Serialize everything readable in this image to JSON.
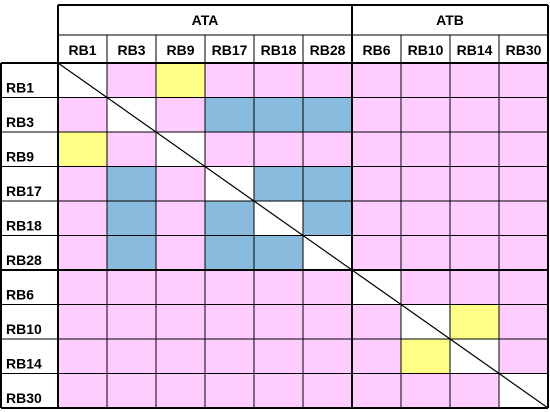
{
  "groups": [
    {
      "label": "ATA",
      "members": [
        "RB1",
        "RB3",
        "RB9",
        "RB17",
        "RB18",
        "RB28"
      ]
    },
    {
      "label": "ATB",
      "members": [
        "RB6",
        "RB10",
        "RB14",
        "RB30"
      ]
    }
  ],
  "columns": [
    "RB1",
    "RB3",
    "RB9",
    "RB17",
    "RB18",
    "RB28",
    "RB6",
    "RB10",
    "RB14",
    "RB30"
  ],
  "rows": [
    "RB1",
    "RB3",
    "RB9",
    "RB17",
    "RB18",
    "RB28",
    "RB6",
    "RB10",
    "RB14",
    "RB30"
  ],
  "colors": {
    "p": "#ffccff",
    "b": "#88bbdd",
    "y": "#ffff88",
    "w": "#ffffff",
    "line": "#000000"
  },
  "cells": [
    [
      "w",
      "p",
      "y",
      "p",
      "p",
      "p",
      "p",
      "p",
      "p",
      "p"
    ],
    [
      "p",
      "w",
      "p",
      "b",
      "b",
      "b",
      "p",
      "p",
      "p",
      "p"
    ],
    [
      "y",
      "p",
      "w",
      "p",
      "p",
      "p",
      "p",
      "p",
      "p",
      "p"
    ],
    [
      "p",
      "b",
      "p",
      "w",
      "b",
      "b",
      "p",
      "p",
      "p",
      "p"
    ],
    [
      "p",
      "b",
      "p",
      "b",
      "w",
      "b",
      "p",
      "p",
      "p",
      "p"
    ],
    [
      "p",
      "b",
      "p",
      "b",
      "b",
      "w",
      "p",
      "p",
      "p",
      "p"
    ],
    [
      "p",
      "p",
      "p",
      "p",
      "p",
      "p",
      "w",
      "p",
      "p",
      "p"
    ],
    [
      "p",
      "p",
      "p",
      "p",
      "p",
      "p",
      "p",
      "w",
      "y",
      "p"
    ],
    [
      "p",
      "p",
      "p",
      "p",
      "p",
      "p",
      "p",
      "y",
      "w",
      "p"
    ],
    [
      "p",
      "p",
      "p",
      "p",
      "p",
      "p",
      "p",
      "p",
      "p",
      "w"
    ]
  ]
}
